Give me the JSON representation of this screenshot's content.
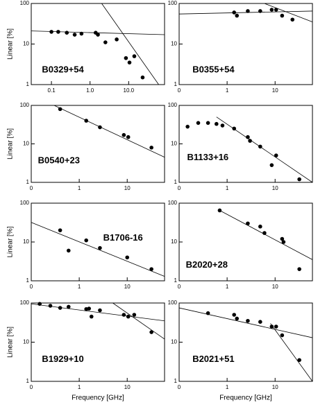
{
  "chart_data": [
    {
      "type": "scatter",
      "title": "B0329+54",
      "ylabel": "Linear [%]",
      "log_x": true,
      "log_y": true,
      "x": [
        0.1,
        0.15,
        0.25,
        0.4,
        0.6,
        1.4,
        1.6,
        2.5,
        4.9,
        8.5,
        10.5,
        14,
        23
      ],
      "values": [
        20,
        20,
        19,
        17,
        18,
        19,
        17,
        11,
        13,
        4.5,
        3.5,
        5,
        1.5
      ],
      "fits": [
        {
          "x": [
            0.03,
            85
          ],
          "values": [
            21,
            17
          ]
        },
        {
          "x": [
            2,
            60
          ],
          "values": [
            100,
            1
          ]
        }
      ],
      "xlim": [
        0.03,
        85
      ],
      "ylim": [
        1,
        100
      ],
      "xticks": [
        {
          "value": 0.1,
          "label": "0.1"
        },
        {
          "value": 1,
          "label": "1.0"
        },
        {
          "value": 10,
          "label": "10.0"
        }
      ],
      "yticks": [
        1,
        10,
        100
      ]
    },
    {
      "type": "scatter",
      "title": "B0355+54",
      "log_x": true,
      "log_y": true,
      "x": [
        1.4,
        1.6,
        2.7,
        4.9,
        8.5,
        10.5,
        14,
        23
      ],
      "values": [
        60,
        50,
        65,
        65,
        70,
        70,
        50,
        40
      ],
      "fits": [
        {
          "x": [
            0.1,
            60
          ],
          "values": [
            55,
            65
          ]
        },
        {
          "x": [
            6,
            60
          ],
          "values": [
            100,
            35
          ]
        }
      ],
      "xlim": [
        0.1,
        60
      ],
      "ylim": [
        1,
        100
      ],
      "xticks": [
        {
          "value": 0.1,
          "label": "0"
        },
        1,
        10
      ],
      "yticks": [
        1,
        10,
        100
      ]
    },
    {
      "type": "scatter",
      "title": "B0540+23",
      "ylabel": "Linear [%]",
      "log_x": true,
      "log_y": true,
      "x": [
        0.4,
        1.4,
        2.7,
        8.5,
        10.5,
        32
      ],
      "values": [
        80,
        40,
        27,
        17,
        15,
        8
      ],
      "fits": [
        {
          "x": [
            0.3,
            60
          ],
          "values": [
            100,
            4.5
          ]
        }
      ],
      "xlim": [
        0.1,
        60
      ],
      "ylim": [
        1,
        100
      ],
      "xticks": [
        {
          "value": 0.1,
          "label": "0"
        },
        1,
        10
      ],
      "yticks": [
        1,
        10,
        100
      ]
    },
    {
      "type": "scatter",
      "title": "B1133+16",
      "log_x": true,
      "log_y": true,
      "x": [
        0.15,
        0.25,
        0.4,
        0.6,
        0.8,
        1.4,
        2.7,
        3,
        4.9,
        8.5,
        10.5,
        32
      ],
      "values": [
        28,
        35,
        35,
        33,
        30,
        25,
        15,
        12,
        8.5,
        2.8,
        5,
        1.2
      ],
      "fits": [
        {
          "x": [
            0.6,
            60
          ],
          "values": [
            50,
            1
          ]
        }
      ],
      "xlim": [
        0.1,
        60
      ],
      "ylim": [
        1,
        100
      ],
      "xticks": [
        {
          "value": 0.1,
          "label": "0"
        },
        1,
        10
      ],
      "yticks": [
        1,
        10,
        100
      ]
    },
    {
      "type": "scatter",
      "title": "B1706-16",
      "ylabel": "Linear [%]",
      "log_x": true,
      "log_y": true,
      "x": [
        0.4,
        0.6,
        1.4,
        2.7,
        10,
        32
      ],
      "values": [
        20,
        6,
        11,
        7,
        4,
        2
      ],
      "fits": [
        {
          "x": [
            0.1,
            60
          ],
          "values": [
            32,
            1.3
          ]
        }
      ],
      "xlim": [
        0.1,
        60
      ],
      "ylim": [
        1,
        100
      ],
      "xticks": [
        {
          "value": 0.1,
          "label": "0"
        },
        1,
        10
      ],
      "yticks": [
        1,
        10,
        100
      ]
    },
    {
      "type": "scatter",
      "title": "B2020+28",
      "log_x": true,
      "log_y": true,
      "x": [
        0.7,
        2.7,
        4.9,
        6,
        14,
        15,
        32
      ],
      "values": [
        65,
        30,
        25,
        17,
        12,
        10,
        2
      ],
      "fits": [
        {
          "x": [
            0.7,
            60
          ],
          "values": [
            65,
            3.5
          ]
        }
      ],
      "xlim": [
        0.1,
        60
      ],
      "ylim": [
        1,
        100
      ],
      "xticks": [
        {
          "value": 0.1,
          "label": "0"
        },
        1,
        10
      ],
      "yticks": [
        1,
        10,
        100
      ]
    },
    {
      "type": "scatter",
      "title": "B1929+10",
      "ylabel": "Linear [%]",
      "xlabel": "Frequency [GHz]",
      "log_x": true,
      "log_y": true,
      "x": [
        0.15,
        0.25,
        0.4,
        0.6,
        1.4,
        1.6,
        1.8,
        2.7,
        8.5,
        10.5,
        14,
        32
      ],
      "values": [
        95,
        85,
        75,
        80,
        70,
        72,
        45,
        65,
        50,
        45,
        50,
        18
      ],
      "fits": [
        {
          "x": [
            0.1,
            60
          ],
          "values": [
            95,
            35
          ]
        },
        {
          "x": [
            5,
            60
          ],
          "values": [
            100,
            12
          ]
        }
      ],
      "xlim": [
        0.1,
        60
      ],
      "ylim": [
        1,
        100
      ],
      "xticks": [
        {
          "value": 0.1,
          "label": "0"
        },
        1,
        10
      ],
      "yticks": [
        1,
        10,
        100
      ]
    },
    {
      "type": "scatter",
      "title": "B2021+51",
      "xlabel": "Frequency [GHz]",
      "log_x": true,
      "log_y": true,
      "x": [
        0.4,
        1.4,
        1.6,
        2.7,
        4.9,
        8.5,
        10.5,
        14,
        32
      ],
      "values": [
        55,
        50,
        40,
        35,
        33,
        25,
        25,
        15,
        3.5
      ],
      "fits": [
        {
          "x": [
            0.1,
            60
          ],
          "values": [
            75,
            13
          ]
        },
        {
          "x": [
            8,
            60
          ],
          "values": [
            30,
            1
          ]
        }
      ],
      "xlim": [
        0.1,
        60
      ],
      "ylim": [
        1,
        100
      ],
      "xticks": [
        {
          "value": 0.1,
          "label": "0"
        },
        1,
        10
      ],
      "yticks": [
        1,
        10,
        100
      ]
    }
  ]
}
